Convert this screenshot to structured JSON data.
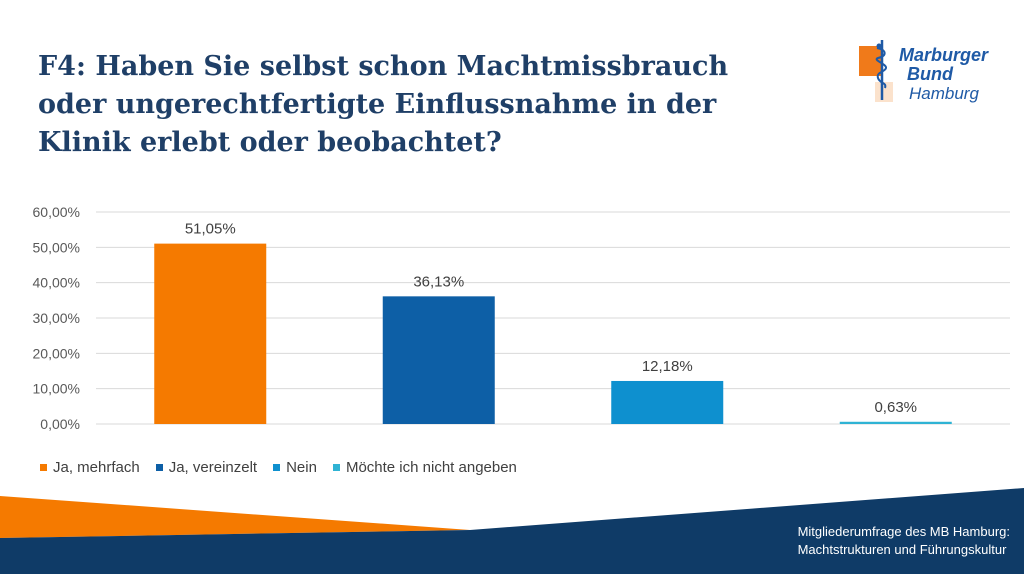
{
  "title": "F4: Haben Sie selbst schon Machtmissbrauch oder ungerechtfertigte Einflussnahme in der Klinik erlebt oder beobachtet?",
  "logo": {
    "line1": "Marburger",
    "line2": "Bund",
    "line3": "Hamburg"
  },
  "footer": {
    "line1": "Mitgliederumfrage des MB Hamburg:",
    "line2": "Machtstrukturen und Führungskultur"
  },
  "colors": {
    "title": "#1f3f67",
    "orange": "#f57a00",
    "dark_blue": "#0d5fa6",
    "blue": "#0e90cf",
    "light_teal": "#2fb3d4",
    "footer_navy": "#0f3b67"
  },
  "chart_data": {
    "type": "bar",
    "title": "",
    "xlabel": "",
    "ylabel": "",
    "ylim": [
      0,
      60
    ],
    "yticks": [
      "60,00%",
      "50,00%",
      "40,00%",
      "30,00%",
      "20,00%",
      "10,00%",
      "0,00%"
    ],
    "ytick_values": [
      60,
      50,
      40,
      30,
      20,
      10,
      0
    ],
    "grid": true,
    "legend_position": "bottom-left",
    "series": [
      {
        "name": "Ja, mehrfach",
        "value": 51.05,
        "label": "51,05%",
        "color": "#f57a00"
      },
      {
        "name": "Ja, vereinzelt",
        "value": 36.13,
        "label": "36,13%",
        "color": "#0d5fa6"
      },
      {
        "name": "Nein",
        "value": 12.18,
        "label": "12,18%",
        "color": "#0e90cf"
      },
      {
        "name": "Möchte ich nicht angeben",
        "value": 0.63,
        "label": "0,63%",
        "color": "#2fb3d4"
      }
    ]
  }
}
